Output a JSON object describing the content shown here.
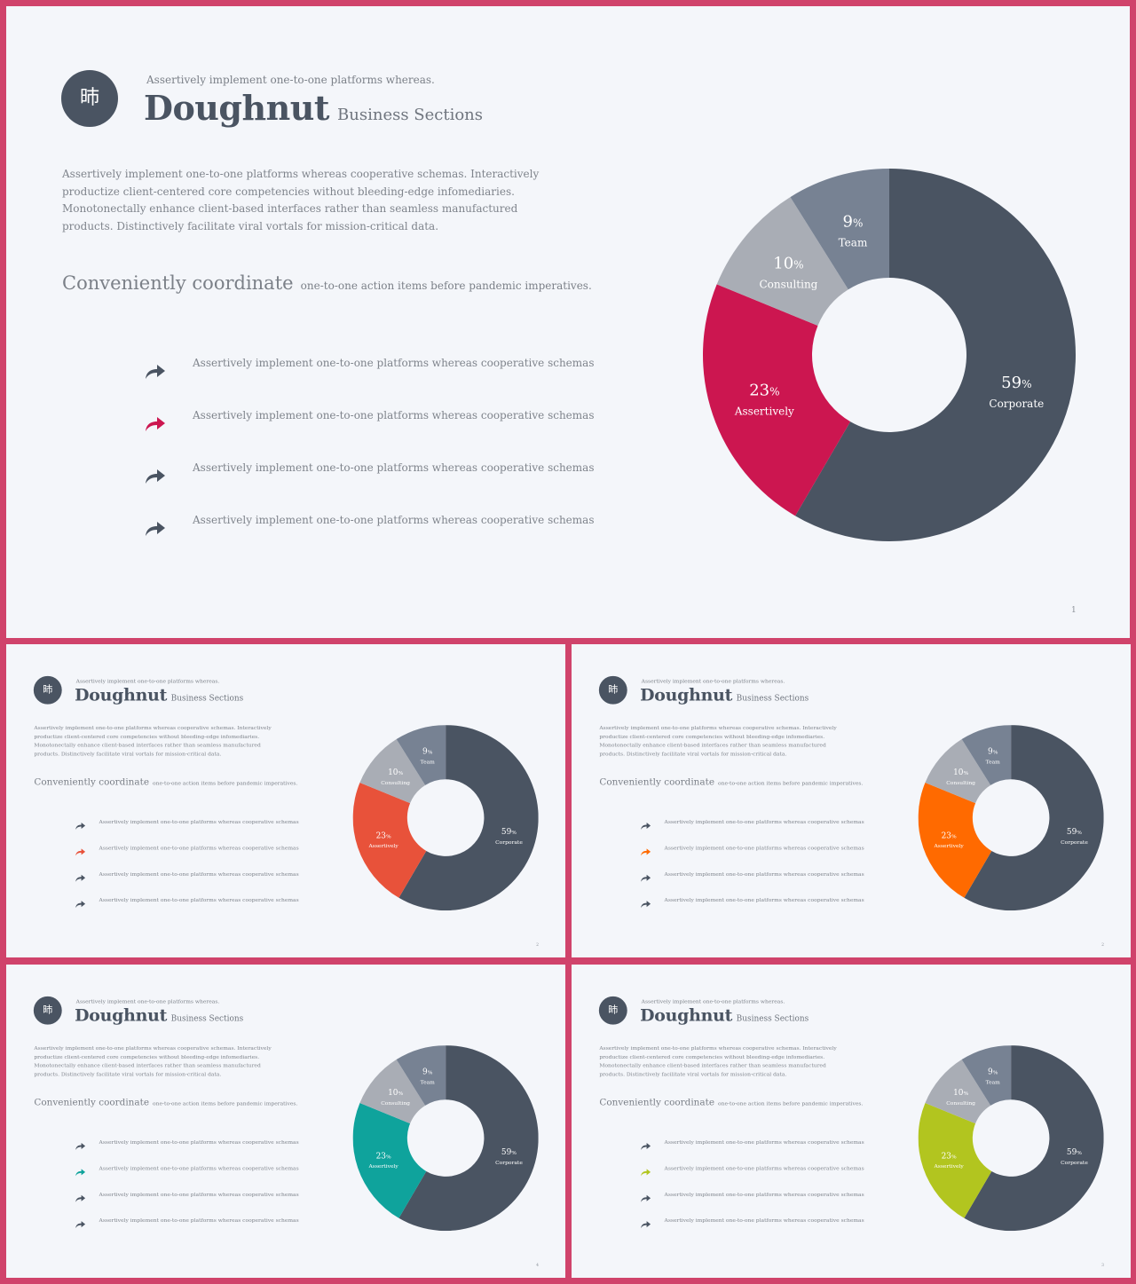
{
  "slides": [
    {
      "accent": "#cc1650",
      "page_number": "1"
    },
    {
      "accent": "#e8523a",
      "page_number": "2"
    },
    {
      "accent": "#ff6a00",
      "page_number": "2"
    },
    {
      "accent": "#0fa39c",
      "page_number": "4"
    },
    {
      "accent": "#b2c51f",
      "page_number": "3"
    }
  ],
  "content": {
    "logo_char": "昁",
    "subtitle": "Assertively implement one-to-one platforms whereas.",
    "title_main": "Doughnut",
    "title_sub": "Business Sections",
    "paragraph": "Assertively implement one-to-one platforms whereas cooperative schemas. Interactively productize client-centered core competencies without bleeding-edge infomediaries. Monotonectally enhance client-based interfaces rather than seamless manufactured products. Distinctively facilitate viral vortals for mission-critical data.",
    "coordinate_main": "Conveniently coordinate",
    "coordinate_sub": "one-to-one action items before pandemic imperatives.",
    "bullets": [
      "Assertively implement one-to-one platforms whereas cooperative schemas",
      "Assertively implement one-to-one platforms whereas cooperative schemas",
      "Assertively implement one-to-one platforms whereas cooperative schemas",
      "Assertively implement one-to-one platforms whereas cooperative schemas"
    ],
    "highlighted_bullet_index": 1,
    "icons": {
      "logo": "logo-glyph",
      "bullet": "forward-arrow-icon"
    }
  },
  "chart_data": {
    "type": "pie",
    "donut": true,
    "categories": [
      "Corporate",
      "Assertively",
      "Consulting",
      "Team"
    ],
    "values": [
      59,
      23,
      10,
      9
    ],
    "value_suffix": "%",
    "colors": {
      "Corporate": "#4a5462",
      "Assertively": "accent",
      "Consulting": "#a9adb5",
      "Team": "#778293"
    }
  }
}
